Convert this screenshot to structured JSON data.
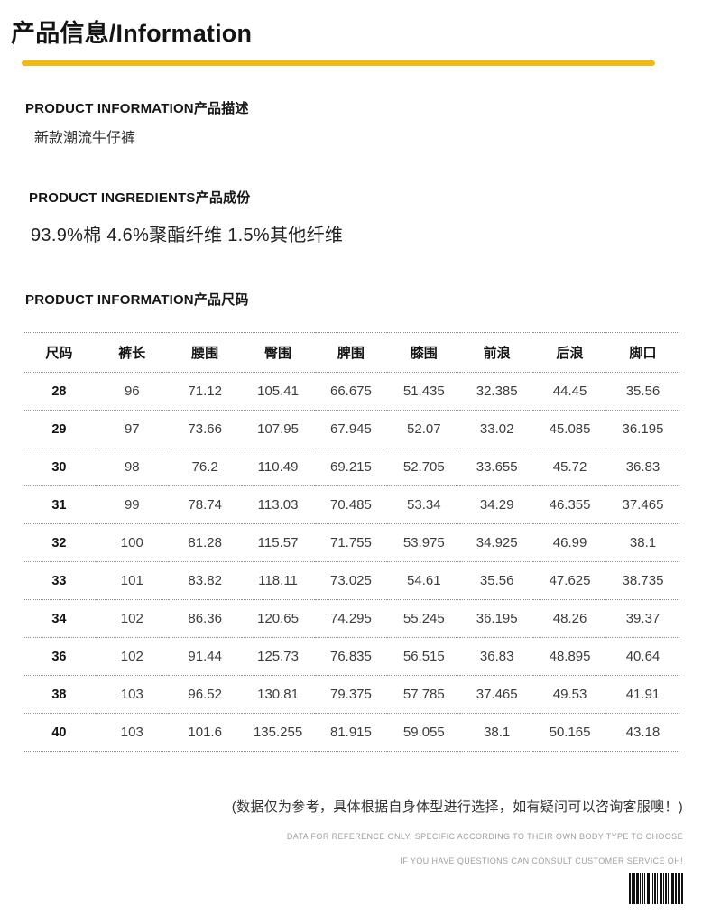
{
  "header": {
    "title": "产品信息/Information",
    "accent_color": "#F1B913"
  },
  "sections": {
    "description": {
      "heading": "PRODUCT INFORMATION产品描述",
      "body": "新款潮流牛仔裤"
    },
    "ingredients": {
      "heading": "PRODUCT INGREDIENTS产品成份",
      "body": "93.9%棉 4.6%聚酯纤维 1.5%其他纤维"
    },
    "size_chart": {
      "heading": "PRODUCT INFORMATION产品尺码"
    }
  },
  "size_table": {
    "columns": [
      "尺码",
      "裤长",
      "腰围",
      "臀围",
      "脾围",
      "膝围",
      "前浪",
      "后浪",
      "脚口"
    ],
    "rows": [
      [
        "28",
        "96",
        "71.12",
        "105.41",
        "66.675",
        "51.435",
        "32.385",
        "44.45",
        "35.56"
      ],
      [
        "29",
        "97",
        "73.66",
        "107.95",
        "67.945",
        "52.07",
        "33.02",
        "45.085",
        "36.195"
      ],
      [
        "30",
        "98",
        "76.2",
        "110.49",
        "69.215",
        "52.705",
        "33.655",
        "45.72",
        "36.83"
      ],
      [
        "31",
        "99",
        "78.74",
        "113.03",
        "70.485",
        "53.34",
        "34.29",
        "46.355",
        "37.465"
      ],
      [
        "32",
        "100",
        "81.28",
        "115.57",
        "71.755",
        "53.975",
        "34.925",
        "46.99",
        "38.1"
      ],
      [
        "33",
        "101",
        "83.82",
        "118.11",
        "73.025",
        "54.61",
        "35.56",
        "47.625",
        "38.735"
      ],
      [
        "34",
        "102",
        "86.36",
        "120.65",
        "74.295",
        "55.245",
        "36.195",
        "48.26",
        "39.37"
      ],
      [
        "36",
        "102",
        "91.44",
        "125.73",
        "76.835",
        "56.515",
        "36.83",
        "48.895",
        "40.64"
      ],
      [
        "38",
        "103",
        "96.52",
        "130.81",
        "79.375",
        "57.785",
        "37.465",
        "49.53",
        "41.91"
      ],
      [
        "40",
        "103",
        "101.6",
        "135.255",
        "81.915",
        "59.055",
        "38.1",
        "50.165",
        "43.18"
      ]
    ]
  },
  "footer": {
    "note_cn": "(数据仅为参考，具体根据自身体型进行选择，如有疑问可以咨询客服噢！)",
    "note_en_line1": "DATA FOR REFERENCE ONLY, SPECIFIC ACCORDING TO THEIR OWN BODY TYPE TO CHOOSE",
    "note_en_line2": "IF YOU HAVE QUESTIONS CAN CONSULT CUSTOMER SERVICE OH!"
  }
}
